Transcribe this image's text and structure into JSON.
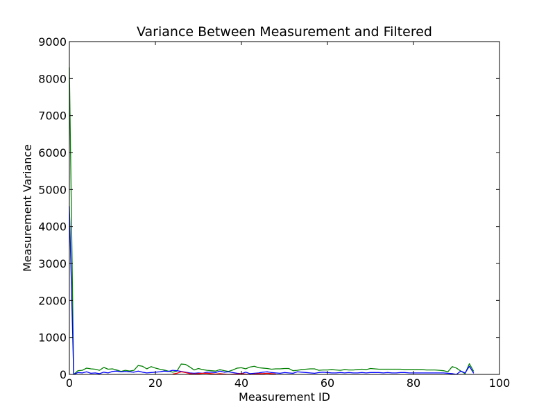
{
  "chart_data": {
    "type": "line",
    "title": "Variance Between Measurement and Filtered",
    "xlabel": "Measurement ID",
    "ylabel": "Measurement Variance",
    "xlim": [
      0,
      100
    ],
    "ylim": [
      0,
      9000
    ],
    "xticks": [
      0,
      20,
      40,
      60,
      80,
      100
    ],
    "yticks": [
      0,
      1000,
      2000,
      3000,
      4000,
      5000,
      6000,
      7000,
      8000,
      9000
    ],
    "grid": false,
    "legend": "none",
    "series": [
      {
        "color": "#008000",
        "x": [
          0,
          1,
          2,
          3,
          4,
          5,
          6,
          7,
          8,
          9,
          10,
          11,
          12,
          13,
          14,
          15,
          16,
          17,
          18,
          19,
          20,
          21,
          22,
          23,
          24,
          25,
          26,
          27,
          28,
          29,
          30,
          31,
          32,
          33,
          34,
          35,
          36,
          37,
          38,
          39,
          40,
          41,
          42,
          43,
          44,
          45,
          46,
          47,
          48,
          49,
          50,
          51,
          52,
          53,
          54,
          55,
          56,
          57,
          58,
          59,
          60,
          61,
          62,
          63,
          64,
          65,
          66,
          67,
          68,
          69,
          70,
          71,
          72,
          73,
          74,
          75,
          76,
          77,
          78,
          79,
          80,
          81,
          82,
          83,
          84,
          85,
          86,
          87,
          88,
          89,
          90,
          91,
          92,
          93,
          94
        ],
        "y": [
          8300,
          0,
          100,
          110,
          170,
          150,
          140,
          110,
          190,
          140,
          150,
          120,
          80,
          110,
          90,
          110,
          240,
          220,
          150,
          210,
          170,
          140,
          120,
          90,
          60,
          90,
          280,
          270,
          200,
          120,
          160,
          130,
          110,
          100,
          90,
          130,
          100,
          80,
          120,
          170,
          180,
          150,
          200,
          220,
          180,
          170,
          160,
          140,
          150,
          150,
          160,
          160,
          100,
          110,
          130,
          140,
          150,
          150,
          110,
          120,
          120,
          130,
          120,
          110,
          130,
          120,
          120,
          130,
          140,
          130,
          160,
          150,
          140,
          140,
          140,
          140,
          140,
          140,
          130,
          130,
          130,
          130,
          130,
          120,
          120,
          120,
          110,
          100,
          70,
          210,
          170,
          90,
          20,
          290,
          80
        ]
      },
      {
        "color": "#0000ff",
        "x": [
          0,
          1,
          2,
          3,
          4,
          5,
          6,
          7,
          8,
          9,
          10,
          11,
          12,
          13,
          14,
          15,
          16,
          17,
          18,
          19,
          20,
          21,
          22,
          23,
          24,
          25,
          26,
          27,
          28,
          29,
          30,
          31,
          32,
          33,
          34,
          35,
          36,
          37,
          38,
          39,
          40,
          41,
          42,
          43,
          44,
          45,
          46,
          47,
          48,
          49,
          50,
          51,
          52,
          53,
          54,
          55,
          56,
          57,
          58,
          59,
          60,
          61,
          62,
          63,
          64,
          65,
          66,
          67,
          68,
          69,
          70,
          71,
          72,
          73,
          74,
          75,
          76,
          77,
          78,
          79,
          80,
          81,
          82,
          83,
          84,
          85,
          86,
          87,
          88,
          89,
          90,
          91,
          92,
          93,
          94
        ],
        "y": [
          4550,
          0,
          50,
          40,
          70,
          30,
          40,
          20,
          60,
          40,
          80,
          90,
          70,
          80,
          70,
          60,
          90,
          60,
          40,
          50,
          60,
          70,
          90,
          80,
          110,
          100,
          80,
          60,
          40,
          30,
          40,
          30,
          60,
          60,
          50,
          90,
          60,
          70,
          50,
          30,
          20,
          60,
          20,
          30,
          40,
          60,
          70,
          50,
          40,
          30,
          50,
          40,
          30,
          70,
          60,
          50,
          40,
          30,
          50,
          60,
          50,
          40,
          40,
          50,
          40,
          50,
          40,
          40,
          50,
          40,
          50,
          50,
          50,
          40,
          50,
          40,
          40,
          50,
          50,
          40,
          40,
          40,
          40,
          40,
          40,
          40,
          40,
          40,
          30,
          20,
          0,
          90,
          40,
          220,
          30
        ]
      },
      {
        "color": "#ff0000",
        "x": [
          24,
          25,
          26,
          27,
          28,
          29,
          30,
          31,
          32,
          33,
          34,
          35,
          36,
          37,
          38,
          39,
          40,
          41,
          42,
          43,
          44,
          45,
          46,
          47,
          48
        ],
        "y": [
          10,
          30,
          70,
          50,
          20,
          10,
          20,
          30,
          30,
          20,
          10,
          20,
          10,
          0,
          10,
          10,
          20,
          10,
          0,
          10,
          20,
          20,
          30,
          20,
          10
        ]
      }
    ]
  }
}
